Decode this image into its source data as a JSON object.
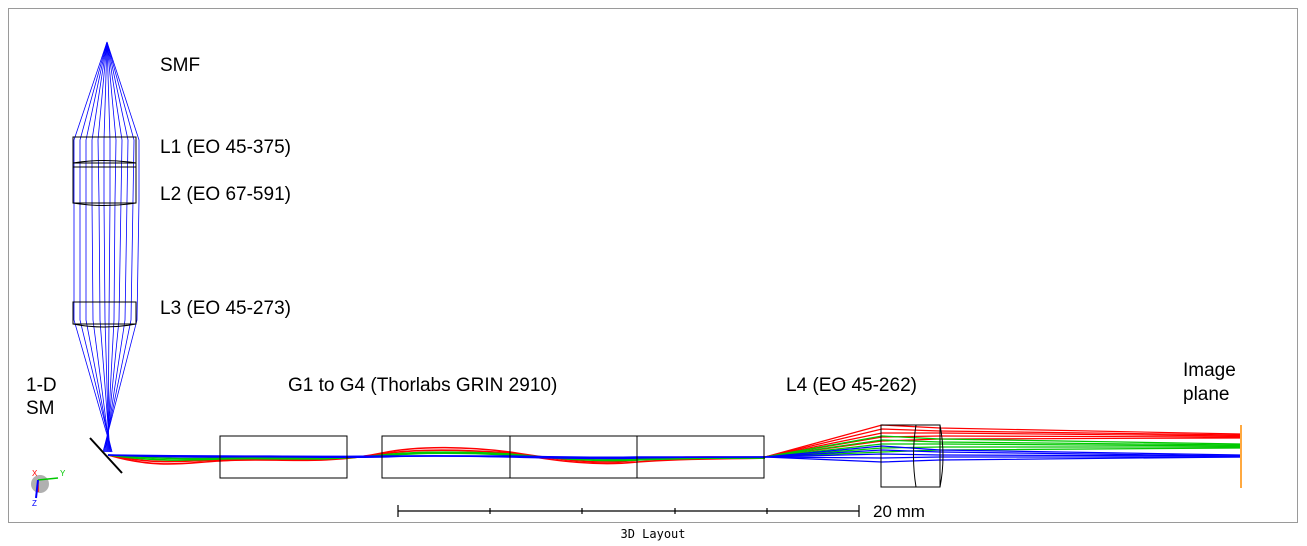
{
  "footer_title": "3D Layout",
  "labels": {
    "smf": "SMF",
    "l1": "L1 (EO 45-375)",
    "l2": "L2 (EO 67-591)",
    "l3": "L3 (EO 45-273)",
    "sm_line1": "1-D",
    "sm_line2": "SM",
    "grin": "G1 to G4 (Thorlabs GRIN 2910)",
    "l4": "L4 (EO 45-262)",
    "image_line1": "Image",
    "image_line2": "plane"
  },
  "scale_bar": {
    "label": "20 mm"
  },
  "axes": {
    "x": "X",
    "y": "Y",
    "z": "Z"
  },
  "colors": {
    "field1": "#0000ff",
    "field2": "#00c800",
    "field3": "#ff0000",
    "outline": "#000000",
    "image_plane": "#ff8c00"
  }
}
